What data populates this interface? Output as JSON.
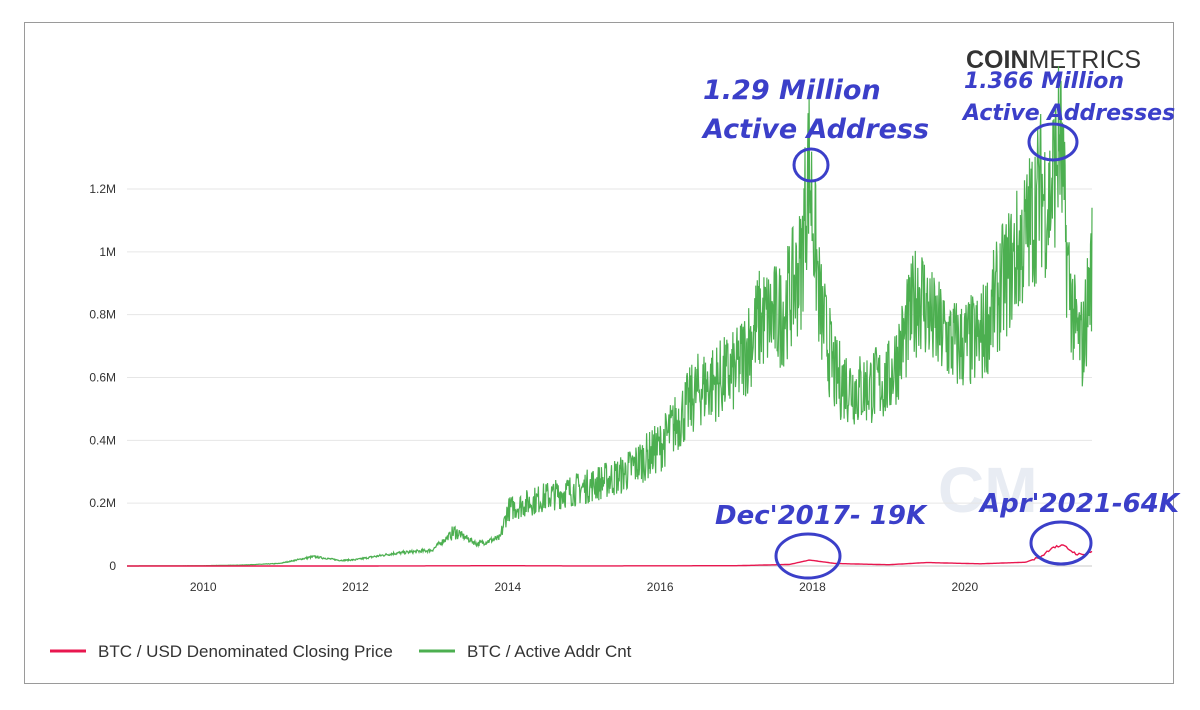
{
  "logo": {
    "bold": "COIN",
    "light": "METRICS"
  },
  "watermark": "CM",
  "annotations": {
    "peak_2017_line1": "1.29 Million",
    "peak_2017_line2": "Active Address",
    "peak_2021_line1": "1.366 Million",
    "peak_2021_line2": "Active Addresses",
    "price_2017": "Dec'2017- 19K",
    "price_2021": "Apr'2021-64K"
  },
  "colors": {
    "price": "#e8174f",
    "active": "#4caf50",
    "annotation": "#3b3fc9",
    "grid": "#e6e6e6"
  },
  "chart_data": {
    "type": "line",
    "title": "",
    "xlabel": "",
    "ylabel": "",
    "x_ticks": [
      "2010",
      "2012",
      "2014",
      "2016",
      "2018",
      "2020"
    ],
    "y_ticks": [
      "0",
      "0.2M",
      "0.4M",
      "0.6M",
      "0.8M",
      "1M",
      "1.2M"
    ],
    "xlim": [
      2009.0,
      2021.67
    ],
    "ylim": [
      0,
      1300000
    ],
    "legend_position": "bottom-left",
    "series": [
      {
        "name": "BTC / USD Denominated Closing Price",
        "x": [
          2009.0,
          2012.0,
          2013.9,
          2015.0,
          2017.0,
          2017.7,
          2017.96,
          2018.3,
          2019.0,
          2019.5,
          2020.2,
          2020.8,
          2021.0,
          2021.15,
          2021.3,
          2021.45,
          2021.55,
          2021.67
        ],
        "y": [
          0,
          0,
          1000,
          300,
          1000,
          5000,
          19000,
          8000,
          4000,
          11000,
          7000,
          12000,
          30000,
          60000,
          64000,
          40000,
          35000,
          47000
        ]
      },
      {
        "name": "BTC / Active Addr Cnt",
        "x": [
          2009.0,
          2010.0,
          2010.5,
          2011.0,
          2011.45,
          2011.8,
          2012.0,
          2012.5,
          2013.0,
          2013.3,
          2013.6,
          2013.9,
          2014.0,
          2014.5,
          2015.0,
          2015.5,
          2016.0,
          2016.5,
          2017.0,
          2017.3,
          2017.6,
          2017.85,
          2017.95,
          2018.1,
          2018.3,
          2018.6,
          2019.0,
          2019.2,
          2019.4,
          2019.6,
          2019.9,
          2020.2,
          2020.5,
          2020.8,
          2021.0,
          2021.1,
          2021.25,
          2021.35,
          2021.45,
          2021.55,
          2021.67
        ],
        "y": [
          0,
          1000,
          3000,
          8000,
          30000,
          18000,
          20000,
          40000,
          50000,
          110000,
          70000,
          90000,
          180000,
          220000,
          250000,
          290000,
          380000,
          560000,
          620000,
          780000,
          800000,
          950000,
          1290000,
          820000,
          600000,
          560000,
          590000,
          720000,
          880000,
          760000,
          700000,
          720000,
          900000,
          1050000,
          1200000,
          1150000,
          1366000,
          950000,
          750000,
          700000,
          960000
        ]
      }
    ]
  },
  "legend": [
    {
      "label": "BTC / USD Denominated Closing Price",
      "color": "#e8174f"
    },
    {
      "label": "BTC / Active Addr Cnt",
      "color": "#4caf50"
    }
  ]
}
